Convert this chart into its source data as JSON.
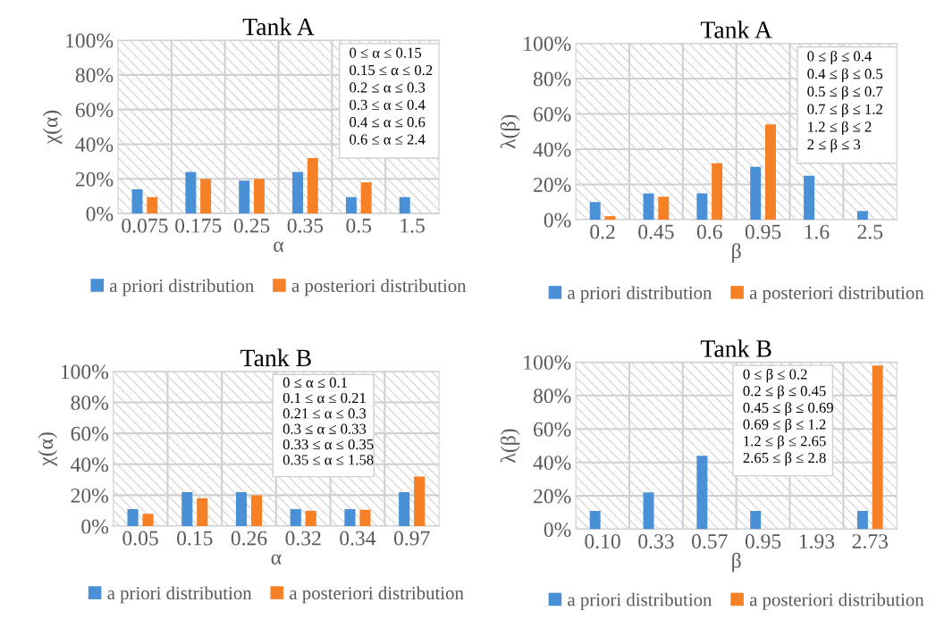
{
  "chart_data": [
    {
      "type": "bar",
      "title": "Tank A",
      "xlabel": "α",
      "ylabel": "χ(α)",
      "categories": [
        "0.075",
        "0.175",
        "0.25",
        "0.35",
        "0.5",
        "1.5"
      ],
      "series": [
        {
          "name": "a priori distribution",
          "color": "#4a90d6",
          "values": [
            14,
            24,
            19,
            24,
            9.5,
            9.5
          ]
        },
        {
          "name": "a posteriori distribution",
          "color": "#f58025",
          "values": [
            9.5,
            20,
            20,
            32,
            18,
            null
          ]
        }
      ],
      "ylim": [
        0,
        100
      ],
      "yticks": [
        {
          "value": 0,
          "label": "0%"
        },
        {
          "value": 20,
          "label": "20%"
        },
        {
          "value": 40,
          "label": "40%"
        },
        {
          "value": 60,
          "label": "60%"
        },
        {
          "value": 80,
          "label": "80%"
        },
        {
          "value": 100,
          "label": "100%"
        }
      ],
      "grid": true,
      "legend": "bottom",
      "annotations": [
        "0 ≤ α ≤ 0.15",
        "0.15 ≤ α ≤ 0.2",
        "0.2 ≤ α ≤ 0.3",
        "0.3 ≤ α ≤ 0.4",
        "0.4 ≤ α ≤ 0.6",
        "0.6 ≤ α ≤ 2.4"
      ]
    },
    {
      "type": "bar",
      "title": "Tank A",
      "xlabel": "β",
      "ylabel": "λ(β)",
      "categories": [
        "0.2",
        "0.45",
        "0.6",
        "0.95",
        "1.6",
        "2.5"
      ],
      "series": [
        {
          "name": "a priori distribution",
          "color": "#4a90d6",
          "values": [
            10,
            15,
            15,
            30,
            25,
            5
          ]
        },
        {
          "name": "a posteriori distribution",
          "color": "#f58025",
          "values": [
            2,
            13,
            32,
            54,
            null,
            null
          ]
        }
      ],
      "ylim": [
        0,
        100
      ],
      "yticks": [
        {
          "value": 0,
          "label": "0%"
        },
        {
          "value": 20,
          "label": "20%"
        },
        {
          "value": 40,
          "label": "40%"
        },
        {
          "value": 60,
          "label": "60%"
        },
        {
          "value": 80,
          "label": "80%"
        },
        {
          "value": 100,
          "label": "100%"
        }
      ],
      "grid": true,
      "legend": "bottom",
      "annotations": [
        "0 ≤ β ≤ 0.4",
        "0.4 ≤ β ≤ 0.5",
        "0.5 ≤ β ≤ 0.7",
        "0.7 ≤ β ≤ 1.2",
        "1.2 ≤ β ≤ 2",
        "2 ≤ β ≤ 3"
      ]
    },
    {
      "type": "bar",
      "title": "Tank B",
      "xlabel": "α",
      "ylabel": "χ(α)",
      "categories": [
        "0.05",
        "0.15",
        "0.26",
        "0.32",
        "0.34",
        "0.97"
      ],
      "series": [
        {
          "name": "a priori distribution",
          "color": "#4a90d6",
          "values": [
            11,
            22,
            22,
            11,
            11,
            22
          ]
        },
        {
          "name": "a posteriori distribution",
          "color": "#f58025",
          "values": [
            8,
            18,
            20,
            10,
            10.5,
            32
          ]
        }
      ],
      "ylim": [
        0,
        100
      ],
      "yticks": [
        {
          "value": 0,
          "label": "0%"
        },
        {
          "value": 20,
          "label": "20%"
        },
        {
          "value": 40,
          "label": "40%"
        },
        {
          "value": 60,
          "label": "60%"
        },
        {
          "value": 80,
          "label": "80%"
        },
        {
          "value": 100,
          "label": "100%"
        }
      ],
      "grid": true,
      "legend": "bottom",
      "annotations": [
        "0 ≤ α ≤ 0.1",
        "0.1 ≤ α ≤ 0.21",
        "0.21 ≤ α ≤ 0.3",
        "0.3 ≤ α ≤ 0.33",
        "0.33 ≤ α ≤ 0.35",
        "0.35 ≤ α ≤ 1.58"
      ]
    },
    {
      "type": "bar",
      "title": "Tank B",
      "xlabel": "β",
      "ylabel": "λ(β)",
      "categories": [
        "0.10",
        "0.33",
        "0.57",
        "0.95",
        "1.93",
        "2.73"
      ],
      "series": [
        {
          "name": "a priori distribution",
          "color": "#4a90d6",
          "values": [
            11,
            22,
            44,
            11,
            null,
            11
          ]
        },
        {
          "name": "a posteriori distribution",
          "color": "#f58025",
          "values": [
            null,
            null,
            null,
            null,
            null,
            98
          ]
        }
      ],
      "ylim": [
        0,
        100
      ],
      "yticks": [
        {
          "value": 0,
          "label": "0%"
        },
        {
          "value": 20,
          "label": "20%"
        },
        {
          "value": 40,
          "label": "40%"
        },
        {
          "value": 60,
          "label": "60%"
        },
        {
          "value": 80,
          "label": "80%"
        },
        {
          "value": 100,
          "label": "100%"
        }
      ],
      "grid": true,
      "legend": "bottom",
      "annotations": [
        "0 ≤ β ≤ 0.2",
        "0.2 ≤ β ≤ 0.45",
        "0.45 ≤ β ≤ 0.69",
        "0.69 ≤ β ≤ 1.2",
        "1.2 ≤ β ≤ 2.65",
        "2.65 ≤ β ≤ 2.8"
      ]
    }
  ]
}
